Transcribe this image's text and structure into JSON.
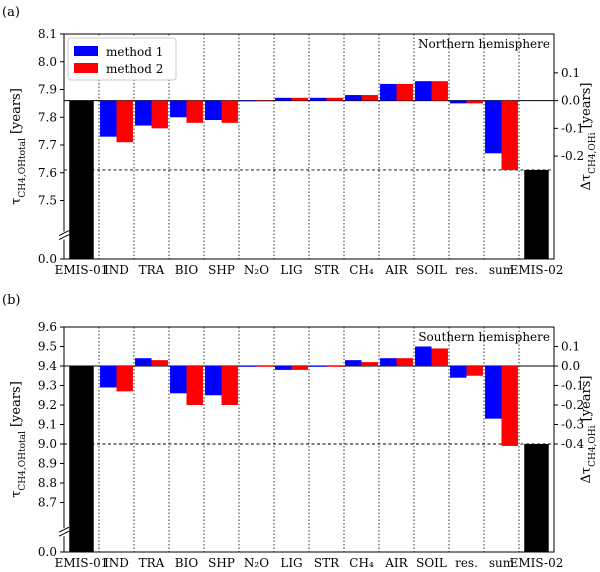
{
  "chart_data": [
    {
      "type": "bar",
      "panel_label": "(a)",
      "title": "Northern hemisphere",
      "ylabel": "τ_{CH4,OH_total} [years]",
      "ylabel_right": "Δτ_{CH4,OH_i} [years]",
      "left_axis": {
        "ylim": [
          7.4,
          8.1
        ],
        "ticks": [
          7.5,
          7.6,
          7.7,
          7.8,
          7.9,
          8.0,
          8.1
        ],
        "tick_labels": [
          "7.5",
          "7.6",
          "7.7",
          "7.8",
          "7.9",
          "8.0",
          "8.1"
        ],
        "zero_label": "0.0"
      },
      "right_axis": {
        "baseline_left_value": 7.86,
        "ticks": [
          -0.2,
          -0.1,
          0.0,
          0.1
        ],
        "tick_labels": [
          "-0.2",
          "-0.1",
          "0.0",
          "0.1"
        ]
      },
      "categories": [
        "EMIS-01",
        "IND",
        "TRA",
        "BIO",
        "SHP",
        "N₂O",
        "LIG",
        "STR",
        "CH₄",
        "AIR",
        "SOIL",
        "res.",
        "sum",
        "EMIS-02"
      ],
      "total_bars": {
        "EMIS-01": 7.86,
        "EMIS-02": 7.61
      },
      "series": [
        {
          "name": "method 1",
          "color": "#0000ff",
          "values": [
            null,
            -0.13,
            -0.09,
            -0.06,
            -0.07,
            0.0,
            0.01,
            0.01,
            0.02,
            0.06,
            0.07,
            -0.01,
            -0.19,
            null
          ]
        },
        {
          "name": "method 2",
          "color": "#ff0000",
          "values": [
            null,
            -0.15,
            -0.1,
            -0.08,
            -0.08,
            0.0,
            0.01,
            0.01,
            0.02,
            0.06,
            0.07,
            -0.01,
            -0.25,
            null
          ]
        }
      ],
      "reference_line": 7.61,
      "legend": "top-left",
      "grid": "vertical dotted category separators"
    },
    {
      "type": "bar",
      "panel_label": "(b)",
      "title": "Southern hemisphere",
      "ylabel": "τ_{CH4,OH_total} [years]",
      "ylabel_right": "Δτ_{CH4,OH_i} [years]",
      "left_axis": {
        "ylim": [
          8.55,
          9.6
        ],
        "ticks": [
          8.7,
          8.8,
          8.9,
          9.0,
          9.1,
          9.2,
          9.3,
          9.4,
          9.5,
          9.6
        ],
        "tick_labels": [
          "8.7",
          "8.8",
          "8.9",
          "9.0",
          "9.1",
          "9.2",
          "9.3",
          "9.4",
          "9.5",
          "9.6"
        ],
        "zero_label": "0.0"
      },
      "right_axis": {
        "baseline_left_value": 9.4,
        "ticks": [
          -0.4,
          -0.3,
          -0.2,
          -0.1,
          0.0,
          0.1
        ],
        "tick_labels": [
          "-0.4",
          "-0.3",
          "-0.2",
          "-0.1",
          "0.0",
          "0.1"
        ]
      },
      "categories": [
        "EMIS-01",
        "IND",
        "TRA",
        "BIO",
        "SHP",
        "N₂O",
        "LIG",
        "STR",
        "CH₄",
        "AIR",
        "SOIL",
        "res.",
        "sum",
        "EMIS-02"
      ],
      "total_bars": {
        "EMIS-01": 9.4,
        "EMIS-02": 9.0
      },
      "series": [
        {
          "name": "method 1",
          "color": "#0000ff",
          "values": [
            null,
            -0.11,
            0.04,
            -0.14,
            -0.15,
            0.0,
            -0.02,
            0.0,
            0.03,
            0.04,
            0.1,
            -0.06,
            -0.27,
            null
          ]
        },
        {
          "name": "method 2",
          "color": "#ff0000",
          "values": [
            null,
            -0.13,
            0.03,
            -0.2,
            -0.2,
            0.0,
            -0.02,
            0.0,
            0.02,
            0.04,
            0.09,
            -0.05,
            -0.41,
            null
          ]
        }
      ],
      "reference_line": 9.0,
      "legend": "none",
      "grid": "vertical dotted category separators"
    }
  ]
}
